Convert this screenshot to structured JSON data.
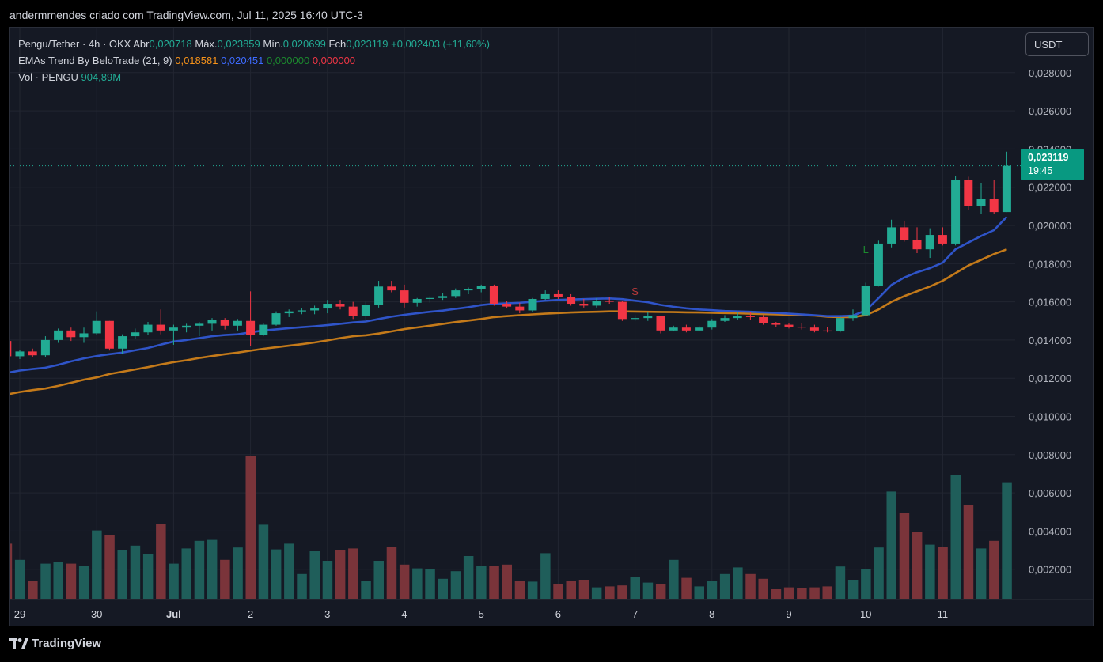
{
  "caption": "andermmendes criado com TradingView.com, Jul 11, 2025 16:40 UTC-3",
  "legend": {
    "symbol_line": "Pengu/Tether · 4h · OKX",
    "open_label": "Abr",
    "open_value": "0,020718",
    "high_label": "Máx.",
    "high_value": "0,023859",
    "low_label": "Mín.",
    "low_value": "0,020699",
    "close_label": "Fch",
    "close_value": "0,023119",
    "change_value": "+0,002403 (+11,60%)",
    "ema_name": "EMAs Trend By BeloTrade (21, 9)",
    "ema_v1": "0,018581",
    "ema_v2": "0,020451",
    "ema_v3": "0,000000",
    "ema_v4": "0,000000",
    "vol_name": "Vol · PENGU",
    "vol_value": "904,89M"
  },
  "currency_button": "USDT",
  "price_tag": {
    "price": "0,023119",
    "countdown": "19:45"
  },
  "brand": "TradingView",
  "colors": {
    "up": "#22ab94",
    "down": "#f23645",
    "ema_fast": "#2f54c8",
    "ema_slow": "#c47a1a",
    "volume_up": "#1f5e5a",
    "volume_down": "#7a343a"
  },
  "chart_data": {
    "type": "candlestick",
    "timeframe": "4h",
    "y_axis": {
      "min": 0.0,
      "max": 0.029,
      "ticks": [
        0.002,
        0.004,
        0.006,
        0.008,
        0.01,
        0.012,
        0.014,
        0.016,
        0.018,
        0.02,
        0.022,
        0.024,
        0.026,
        0.028
      ],
      "labels": [
        "0,002000",
        "0,004000",
        "0,006000",
        "0,008000",
        "0,010000",
        "0,012000",
        "0,014000",
        "0,016000",
        "0,018000",
        "0,020000",
        "0,022000",
        "0,024000",
        "0,026000",
        "0,028000"
      ]
    },
    "x_axis": {
      "labels": [
        "29",
        "30",
        "Jul",
        "2",
        "3",
        "4",
        "5",
        "6",
        "7",
        "8",
        "9",
        "10",
        "11"
      ],
      "label_bar_index": [
        1,
        7,
        13,
        19,
        25,
        31,
        37,
        43,
        49,
        55,
        61,
        67,
        73
      ]
    },
    "last_price": 0.023119,
    "signals": [
      {
        "text": "S",
        "bar": 49,
        "price": 0.01635,
        "color": "#b83a3a"
      },
      {
        "text": "L",
        "bar": 67,
        "price": 0.01855,
        "color": "#1c8a2e"
      }
    ],
    "candles": [
      [
        0.01395,
        0.01395,
        0.01315,
        0.01315
      ],
      [
        0.01315,
        0.0135,
        0.013,
        0.0134
      ],
      [
        0.0134,
        0.01355,
        0.0131,
        0.0132
      ],
      [
        0.0132,
        0.0142,
        0.0131,
        0.014
      ],
      [
        0.014,
        0.0146,
        0.01385,
        0.0145
      ],
      [
        0.0145,
        0.01465,
        0.01395,
        0.01415
      ],
      [
        0.01415,
        0.01465,
        0.01385,
        0.01435
      ],
      [
        0.01435,
        0.0155,
        0.01425,
        0.015
      ],
      [
        0.015,
        0.015,
        0.01345,
        0.01355
      ],
      [
        0.01355,
        0.0143,
        0.01325,
        0.0142
      ],
      [
        0.0142,
        0.0146,
        0.01405,
        0.0144
      ],
      [
        0.0144,
        0.01495,
        0.01425,
        0.0148
      ],
      [
        0.0148,
        0.0156,
        0.0143,
        0.0145
      ],
      [
        0.0145,
        0.0148,
        0.01375,
        0.01465
      ],
      [
        0.01465,
        0.01485,
        0.0144,
        0.01475
      ],
      [
        0.01475,
        0.01495,
        0.0142,
        0.01485
      ],
      [
        0.01485,
        0.01515,
        0.0145,
        0.01505
      ],
      [
        0.01505,
        0.01515,
        0.01455,
        0.01475
      ],
      [
        0.01475,
        0.0151,
        0.0145,
        0.015
      ],
      [
        0.015,
        0.01655,
        0.0137,
        0.01425
      ],
      [
        0.01425,
        0.0149,
        0.0142,
        0.0148
      ],
      [
        0.0148,
        0.0155,
        0.01475,
        0.0154
      ],
      [
        0.0154,
        0.0156,
        0.0152,
        0.0155
      ],
      [
        0.0155,
        0.01565,
        0.01535,
        0.01555
      ],
      [
        0.01555,
        0.0158,
        0.01535,
        0.01565
      ],
      [
        0.01565,
        0.0161,
        0.0154,
        0.0159
      ],
      [
        0.0159,
        0.0161,
        0.0156,
        0.01575
      ],
      [
        0.01575,
        0.016,
        0.0151,
        0.01525
      ],
      [
        0.01525,
        0.016,
        0.015,
        0.01585
      ],
      [
        0.01585,
        0.0171,
        0.0157,
        0.0168
      ],
      [
        0.0168,
        0.0171,
        0.0165,
        0.0166
      ],
      [
        0.0166,
        0.0169,
        0.0157,
        0.01595
      ],
      [
        0.01595,
        0.0162,
        0.01575,
        0.01615
      ],
      [
        0.01615,
        0.0163,
        0.01595,
        0.0162
      ],
      [
        0.0162,
        0.01645,
        0.0161,
        0.0163
      ],
      [
        0.0163,
        0.0167,
        0.0162,
        0.0166
      ],
      [
        0.0166,
        0.01675,
        0.0164,
        0.01665
      ],
      [
        0.01665,
        0.0169,
        0.0165,
        0.01685
      ],
      [
        0.01685,
        0.0169,
        0.0158,
        0.0159
      ],
      [
        0.0159,
        0.01605,
        0.01565,
        0.01575
      ],
      [
        0.01575,
        0.01595,
        0.0154,
        0.01555
      ],
      [
        0.01555,
        0.0162,
        0.01545,
        0.01615
      ],
      [
        0.01615,
        0.0166,
        0.0161,
        0.0164
      ],
      [
        0.0164,
        0.0166,
        0.01615,
        0.01625
      ],
      [
        0.01625,
        0.0164,
        0.0158,
        0.0159
      ],
      [
        0.0159,
        0.01615,
        0.0157,
        0.0158
      ],
      [
        0.0158,
        0.0162,
        0.0157,
        0.01605
      ],
      [
        0.01605,
        0.01625,
        0.0159,
        0.016
      ],
      [
        0.016,
        0.01605,
        0.015,
        0.0151
      ],
      [
        0.0151,
        0.0153,
        0.015,
        0.01515
      ],
      [
        0.01515,
        0.01545,
        0.015,
        0.01525
      ],
      [
        0.01525,
        0.01525,
        0.01435,
        0.0145
      ],
      [
        0.0145,
        0.01475,
        0.01445,
        0.01465
      ],
      [
        0.01465,
        0.0148,
        0.0144,
        0.0145
      ],
      [
        0.0145,
        0.01475,
        0.01445,
        0.01465
      ],
      [
        0.01465,
        0.0151,
        0.01455,
        0.015
      ],
      [
        0.015,
        0.0153,
        0.01495,
        0.01515
      ],
      [
        0.01515,
        0.01545,
        0.01505,
        0.01525
      ],
      [
        0.01525,
        0.01545,
        0.01505,
        0.0152
      ],
      [
        0.0152,
        0.0153,
        0.0148,
        0.0149
      ],
      [
        0.0149,
        0.01495,
        0.0147,
        0.0148
      ],
      [
        0.0148,
        0.0149,
        0.0146,
        0.0147
      ],
      [
        0.0147,
        0.0149,
        0.01455,
        0.01465
      ],
      [
        0.01465,
        0.0148,
        0.0144,
        0.0145
      ],
      [
        0.0145,
        0.0147,
        0.0144,
        0.01445
      ],
      [
        0.01445,
        0.0153,
        0.0144,
        0.01515
      ],
      [
        0.01515,
        0.0156,
        0.015,
        0.0153
      ],
      [
        0.0153,
        0.017,
        0.01525,
        0.01685
      ],
      [
        0.01685,
        0.0192,
        0.0168,
        0.01905
      ],
      [
        0.01905,
        0.0203,
        0.01885,
        0.0199
      ],
      [
        0.0199,
        0.02025,
        0.01915,
        0.01925
      ],
      [
        0.01925,
        0.0199,
        0.01855,
        0.01875
      ],
      [
        0.01875,
        0.01985,
        0.0183,
        0.0195
      ],
      [
        0.0195,
        0.0199,
        0.01895,
        0.01905
      ],
      [
        0.01905,
        0.0226,
        0.01895,
        0.0224
      ],
      [
        0.0224,
        0.02255,
        0.0208,
        0.021
      ],
      [
        0.021,
        0.0222,
        0.0206,
        0.0214
      ],
      [
        0.0214,
        0.0224,
        0.0206,
        0.0207
      ],
      [
        0.0207,
        0.02386,
        0.0207,
        0.02312
      ]
    ],
    "volume": {
      "values": [
        2.9,
        2.05,
        0.95,
        1.85,
        1.95,
        1.85,
        1.75,
        3.6,
        3.35,
        2.55,
        2.8,
        2.35,
        3.95,
        1.85,
        2.65,
        3.05,
        3.1,
        2.05,
        2.7,
        7.5,
        3.9,
        2.6,
        2.9,
        1.3,
        2.5,
        2.0,
        2.55,
        2.65,
        0.95,
        2.0,
        2.75,
        1.8,
        1.6,
        1.55,
        1.05,
        1.45,
        2.25,
        1.75,
        1.75,
        1.8,
        0.95,
        0.9,
        2.4,
        0.75,
        0.95,
        1.0,
        0.6,
        0.65,
        0.7,
        1.15,
        0.85,
        0.75,
        2.05,
        1.1,
        0.65,
        0.95,
        1.3,
        1.65,
        1.3,
        1.05,
        0.5,
        0.6,
        0.55,
        0.6,
        0.65,
        1.7,
        1.0,
        1.55,
        2.7,
        5.65,
        4.5,
        3.5,
        2.85,
        2.75,
        6.5,
        4.95,
        2.65,
        3.05,
        6.1
      ]
    },
    "ema_fast": [
      0.01228,
      0.0124,
      0.01248,
      0.01255,
      0.0127,
      0.01288,
      0.01304,
      0.01316,
      0.01326,
      0.01334,
      0.01346,
      0.01358,
      0.01376,
      0.01392,
      0.014,
      0.0141,
      0.0142,
      0.01426,
      0.0143,
      0.0144,
      0.0145,
      0.01456,
      0.01462,
      0.01467,
      0.01472,
      0.01478,
      0.01485,
      0.01492,
      0.01497,
      0.0151,
      0.01522,
      0.01532,
      0.0154,
      0.01548,
      0.01554,
      0.01563,
      0.01572,
      0.01583,
      0.0159,
      0.01592,
      0.01595,
      0.016,
      0.01606,
      0.0161,
      0.01612,
      0.01614,
      0.01616,
      0.01618,
      0.01614,
      0.01606,
      0.01598,
      0.01584,
      0.01574,
      0.01566,
      0.0156,
      0.01556,
      0.01552,
      0.0155,
      0.01548,
      0.01545,
      0.01542,
      0.01538,
      0.01534,
      0.0153,
      0.01525,
      0.01525,
      0.01528,
      0.01555,
      0.0162,
      0.01688,
      0.01727,
      0.01755,
      0.01776,
      0.01805,
      0.01875,
      0.0191,
      0.01945,
      0.01975,
      0.02045
    ],
    "ema_slow": [
      0.01115,
      0.01128,
      0.01138,
      0.01146,
      0.0116,
      0.01176,
      0.01192,
      0.01204,
      0.01222,
      0.01234,
      0.01246,
      0.01258,
      0.01272,
      0.01284,
      0.01294,
      0.01306,
      0.01316,
      0.01326,
      0.01334,
      0.01344,
      0.01354,
      0.01362,
      0.0137,
      0.01378,
      0.01387,
      0.01398,
      0.0141,
      0.0142,
      0.01425,
      0.01434,
      0.01445,
      0.01457,
      0.01466,
      0.01475,
      0.01484,
      0.01494,
      0.01502,
      0.0151,
      0.0152,
      0.01525,
      0.0153,
      0.01534,
      0.01538,
      0.01541,
      0.01544,
      0.01546,
      0.01548,
      0.0155,
      0.0155,
      0.01549,
      0.01548,
      0.01547,
      0.01546,
      0.01545,
      0.01544,
      0.01543,
      0.01541,
      0.0154,
      0.01538,
      0.01536,
      0.01534,
      0.01532,
      0.0153,
      0.01528,
      0.01522,
      0.0152,
      0.0152,
      0.0153,
      0.0156,
      0.016,
      0.0163,
      0.01655,
      0.0168,
      0.0171,
      0.0175,
      0.0179,
      0.0182,
      0.0185,
      0.01875
    ]
  }
}
